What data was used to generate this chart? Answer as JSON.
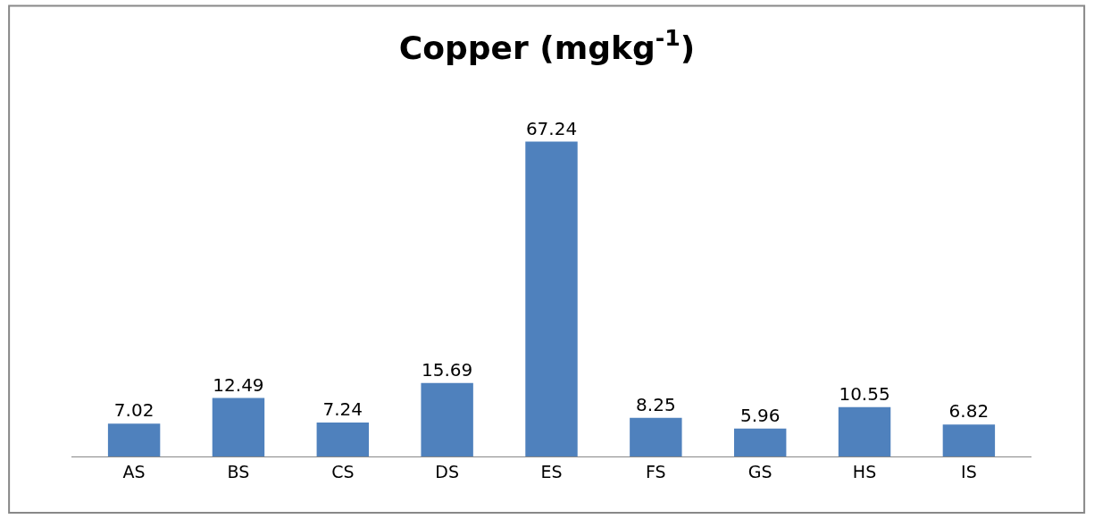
{
  "chart_data": {
    "type": "bar",
    "title": "Copper (mgkg$^{-1}$)",
    "categories": [
      "AS",
      "BS",
      "CS",
      "DS",
      "ES",
      "FS",
      "GS",
      "HS",
      "IS"
    ],
    "values": [
      7.02,
      12.49,
      7.24,
      15.69,
      67.24,
      8.25,
      5.96,
      10.55,
      6.82
    ],
    "color": "#4f81bd",
    "data_labels": true
  }
}
